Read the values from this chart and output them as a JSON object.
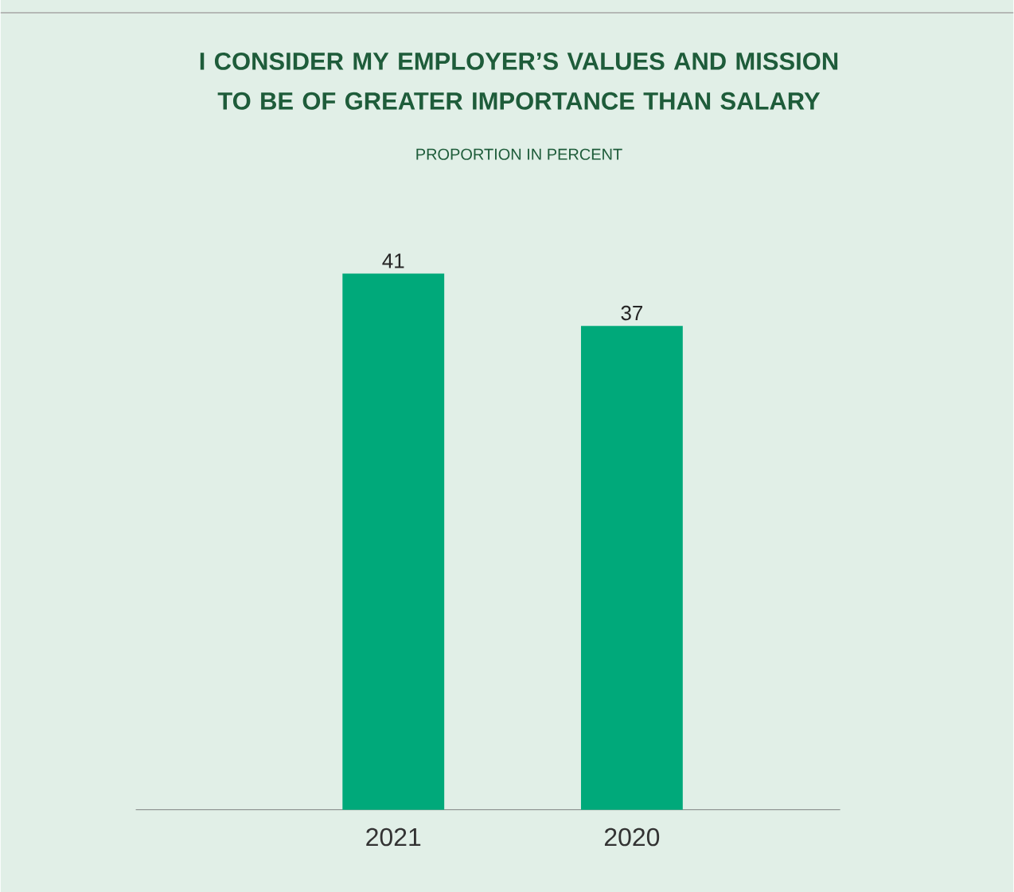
{
  "chart_data": {
    "type": "bar",
    "title": "I CONSIDER MY EMPLOYER’S VALUES AND MISSION TO BE OF GREATER IMPORTANCE THAN SALARY",
    "subtitle": "PROPORTION IN PERCENT",
    "categories": [
      "2021",
      "2020"
    ],
    "values": [
      41,
      37
    ],
    "color": "#00a97a",
    "data_labels": true
  }
}
